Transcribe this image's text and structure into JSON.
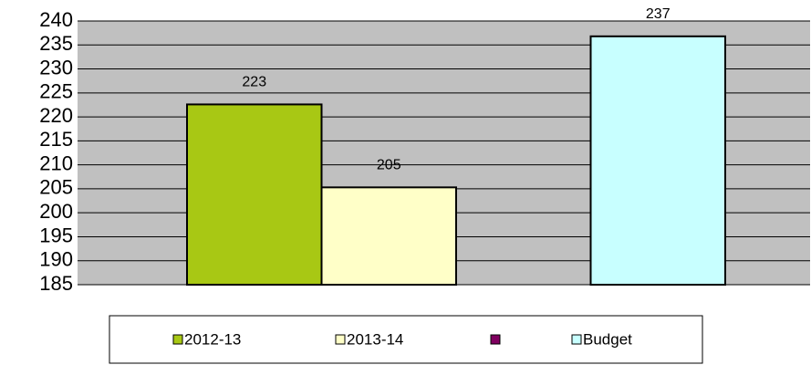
{
  "chart_data": {
    "type": "bar",
    "series": [
      {
        "name": "2012-13",
        "color": "#a8c814",
        "values": [
          222.6
        ],
        "value_labels": [
          "223"
        ]
      },
      {
        "name": "2013-14",
        "color": "#ffffc8",
        "values": [
          205.3
        ],
        "value_labels": [
          "205"
        ]
      },
      {
        "color": "#800060",
        "values": [
          null
        ]
      },
      {
        "name": "Budget",
        "color": "#c8ffff",
        "values": [
          236.8
        ],
        "value_labels": [
          "237"
        ]
      }
    ],
    "ylim": [
      185,
      240
    ],
    "yticks": [
      185,
      190,
      195,
      200,
      205,
      210,
      215,
      220,
      225,
      230,
      235,
      240
    ],
    "grid": true
  }
}
